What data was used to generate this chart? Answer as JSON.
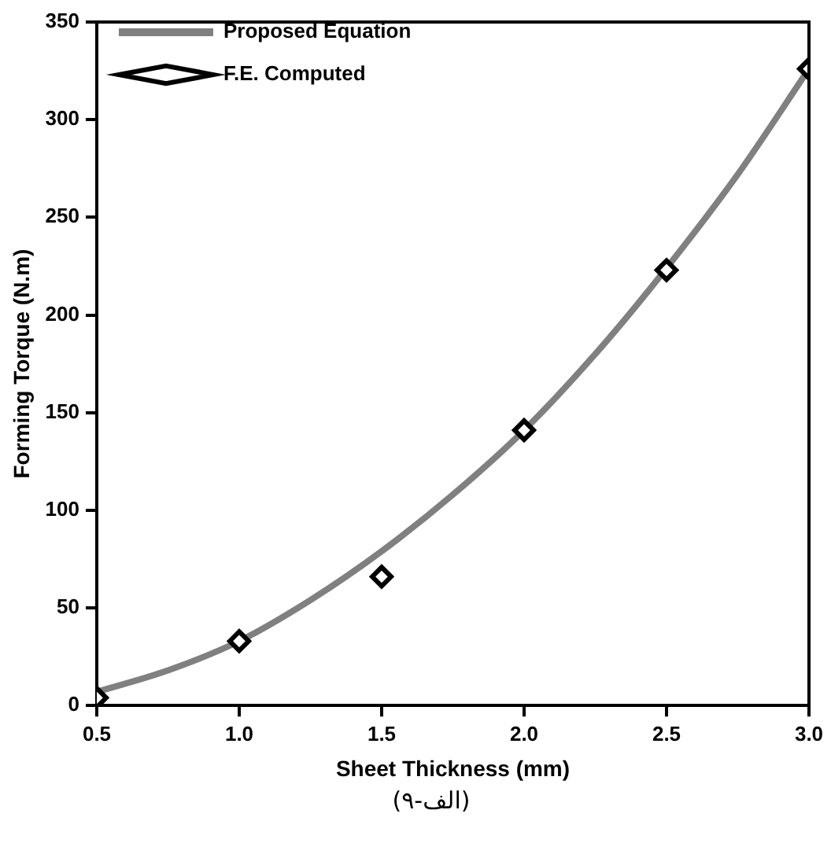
{
  "chart_data": {
    "type": "scatter",
    "xlabel": "Sheet Thickness (mm)",
    "ylabel": "Forming Torque (N.m)",
    "xlim": [
      0.5,
      3.0
    ],
    "xticks": [
      0.5,
      {
        "value": 1,
        "label": "1.0"
      },
      1.5,
      {
        "value": 2,
        "label": "2.0"
      },
      2.5,
      {
        "value": 3,
        "label": "3.0"
      }
    ],
    "ylim": [
      0,
      350
    ],
    "yticks": [
      0,
      50,
      100,
      150,
      200,
      250,
      300,
      350
    ],
    "legend": "top left",
    "grid": false,
    "series": [
      {
        "name": "Proposed Equation",
        "type": "line",
        "color": "#808080",
        "marker": "none",
        "line_style": "solid",
        "x": [
          0.5,
          0.75,
          1.0,
          1.25,
          1.5,
          1.75,
          2.0,
          2.25,
          2.5,
          2.75,
          3.0
        ],
        "values": [
          7,
          18,
          33,
          54,
          79,
          108,
          141,
          180,
          224,
          272,
          326
        ]
      },
      {
        "name": "F.E. Computed",
        "type": "scatter",
        "color": "#000000",
        "marker": "diamond",
        "x": [
          0.5,
          1.0,
          1.5,
          2.0,
          2.5,
          3.0
        ],
        "values": [
          4,
          33,
          66,
          141,
          223,
          326
        ]
      }
    ],
    "annotations": [
      "(۹-الف)"
    ]
  }
}
